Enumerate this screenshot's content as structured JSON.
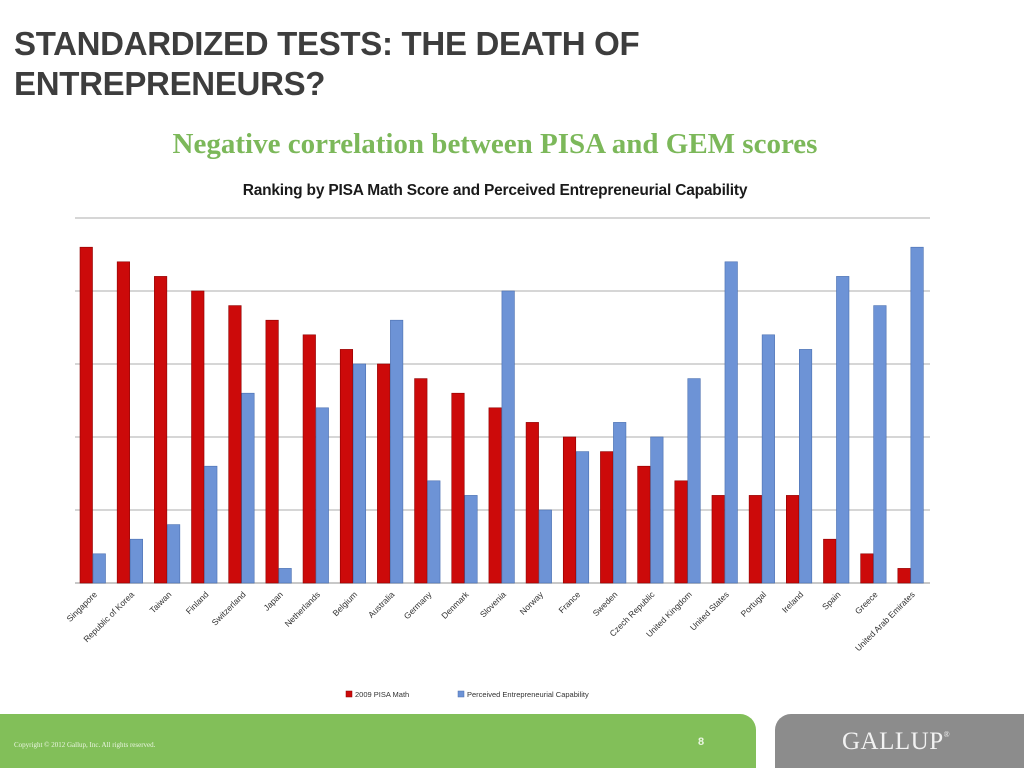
{
  "slide": {
    "title": "STANDARDIZED TESTS: THE DEATH OF ENTREPRENEURS?",
    "subtitle": "Negative correlation between PISA and GEM scores",
    "page_number": "8",
    "copyright": "Copyright © 2012 Gallup, Inc. All rights reserved.",
    "logo": "GALLUP",
    "logo_mark": "®"
  },
  "colors": {
    "pisa": "#cc0a0a",
    "pisa_edge": "#8e0000",
    "gem": "#6d93d6",
    "gem_edge": "#4a6fb0",
    "grid": "#c8c8c8",
    "title": "#3d3d3d",
    "subtitle": "#7cb85a",
    "footer_green": "#82bf59",
    "footer_gray": "#8c8c8c"
  },
  "chart_data": {
    "type": "bar",
    "title": "Ranking by PISA Math Score and Perceived Entrepreneurial Capability",
    "xlabel": "",
    "ylabel": "",
    "ylim": [
      0,
      25
    ],
    "yticks": [
      0,
      5,
      10,
      15,
      20,
      25
    ],
    "show_ytick_labels": false,
    "grid": true,
    "legend_position": "bottom",
    "categories": [
      "Singapore",
      "Republic of Korea",
      "Taiwan",
      "Finland",
      "Switzerland",
      "Japan",
      "Netherlands",
      "Belgium",
      "Australia",
      "Germany",
      "Denmark",
      "Slovenia",
      "Norway",
      "France",
      "Sweden",
      "Czech Republic",
      "United Kingdom",
      "United States",
      "Portugal",
      "Ireland",
      "Spain",
      "Greece",
      "United Arab Emirates"
    ],
    "series": [
      {
        "name": "2009 PISA Math",
        "values": [
          23,
          22,
          21,
          20,
          19,
          18,
          17,
          16,
          15,
          14,
          13,
          12,
          11,
          10,
          9,
          8,
          7,
          6,
          6,
          6,
          3,
          2,
          1
        ]
      },
      {
        "name": "Perceived Entrepreneurial Capability",
        "values": [
          2,
          3,
          4,
          8,
          13,
          1,
          12,
          15,
          18,
          7,
          6,
          20,
          5,
          9,
          11,
          10,
          14,
          22,
          17,
          16,
          21,
          19,
          23
        ]
      }
    ]
  }
}
